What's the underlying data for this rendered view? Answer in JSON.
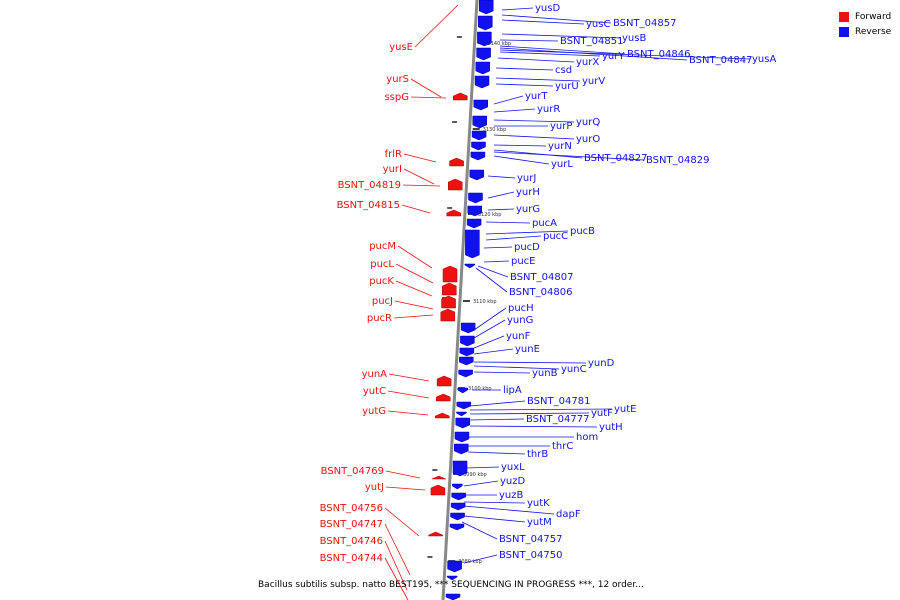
{
  "legend": {
    "forward_label": "Forward",
    "reverse_label": "Reverse",
    "forward_color": "#ee1111",
    "reverse_color": "#1111ee"
  },
  "caption": "Bacillus subtilis subsp. natto BEST195, *** SEQUENCING IN PROGRESS ***, 12 order...",
  "scale_ticks": [
    "3140 kbp",
    "3130 kbp",
    "3120 kbp",
    "3110 kbp",
    "3100 kbp",
    "3090 kbp",
    "3080 kbp"
  ],
  "forward_genes": [
    "yusE",
    "yurS",
    "sspG",
    "frlR",
    "yurI",
    "BSNT_04819",
    "BSNT_04815",
    "pucM",
    "pucL",
    "pucK",
    "pucJ",
    "pucR",
    "yunA",
    "yutC",
    "yutG",
    "BSNT_04769",
    "yutJ",
    "BSNT_04756",
    "BSNT_04747",
    "BSNT_04746",
    "BSNT_04744"
  ],
  "reverse_genes": [
    "yusD",
    "yusC",
    "BSNT_04857",
    "yusB",
    "BSNT_04851",
    "yurY",
    "BSNT_04846",
    "BSNT_04847",
    "yusA",
    "yurX",
    "csd",
    "yurV",
    "yurU",
    "yurT",
    "yurR",
    "yurQ",
    "yurP",
    "yurO",
    "yurN",
    "BSNT_04827",
    "BSNT_04829",
    "yurL",
    "yurJ",
    "yurH",
    "yurG",
    "pucA",
    "pucB",
    "pucC",
    "pucD",
    "pucE",
    "BSNT_04807",
    "BSNT_04806",
    "pucH",
    "yunG",
    "yunF",
    "yunE",
    "yunD",
    "yunC",
    "yunB",
    "lipA",
    "BSNT_04781",
    "yutE",
    "yutF",
    "BSNT_04777",
    "yutH",
    "hom",
    "thrC",
    "thrB",
    "yuxL",
    "yuzD",
    "yuzB",
    "dapF",
    "yutK",
    "yutM",
    "BSNT_04757",
    "BSNT_04750"
  ]
}
